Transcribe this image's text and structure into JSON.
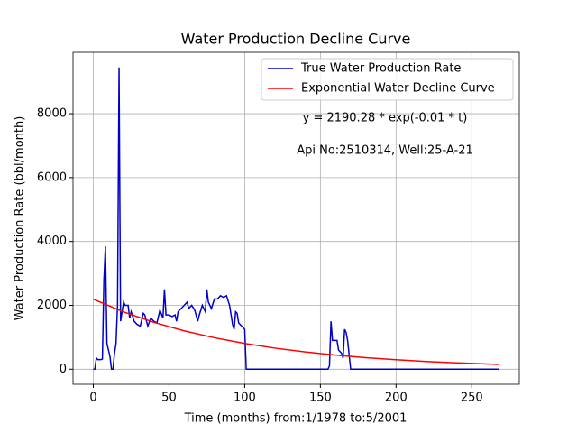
{
  "chart_data": {
    "type": "line",
    "title": "Water Production Decline Curve",
    "xlabel": "Time (months) from:1/1978 to:5/2001",
    "ylabel": "Water Production Rate (bbl/month)",
    "annotations": [
      "y = 2190.28 * exp(-0.01 * t)",
      "Api No:2510314, Well:25-A-21"
    ],
    "xlim": [
      -13.4,
      281.4
    ],
    "xticks": [
      0,
      50,
      100,
      150,
      200,
      250
    ],
    "ylim": [
      -472,
      9922
    ],
    "yticks": [
      0,
      2000,
      4000,
      6000,
      8000
    ],
    "grid": true,
    "legend": "upper right",
    "series": [
      {
        "name": "True Water Production Rate",
        "color": "#0000cc",
        "x": [
          0,
          1,
          2,
          3,
          5,
          6,
          7,
          8,
          9,
          11,
          12,
          13,
          14,
          15,
          16,
          17,
          18,
          19,
          20,
          21,
          23,
          24,
          25,
          27,
          29,
          31,
          33,
          34,
          36,
          38,
          40,
          42,
          44,
          46,
          47,
          48,
          50,
          52,
          54,
          55,
          56,
          58,
          60,
          62,
          63,
          65,
          67,
          69,
          70,
          72,
          74,
          75,
          76,
          78,
          80,
          82,
          84,
          86,
          88,
          90,
          92,
          93,
          94,
          95,
          96,
          98,
          100,
          101,
          110,
          150,
          155,
          156,
          157,
          158,
          160,
          161,
          162,
          164,
          165,
          166,
          167,
          168,
          170,
          268
        ],
        "values": [
          0,
          0,
          350,
          300,
          300,
          320,
          2800,
          3850,
          800,
          400,
          0,
          0,
          500,
          800,
          2000,
          9450,
          1500,
          1800,
          2100,
          2000,
          2000,
          1600,
          1800,
          1500,
          1400,
          1350,
          1750,
          1700,
          1350,
          1600,
          1500,
          1450,
          1850,
          1600,
          2500,
          1700,
          1700,
          1650,
          1700,
          1500,
          1800,
          1900,
          2000,
          2100,
          1900,
          2000,
          1850,
          1500,
          1700,
          2000,
          1800,
          2500,
          2100,
          1900,
          2200,
          2200,
          2300,
          2250,
          2300,
          2000,
          1400,
          1250,
          1800,
          1750,
          1450,
          1350,
          1250,
          0,
          0,
          0,
          0,
          100,
          1500,
          900,
          900,
          900,
          600,
          500,
          350,
          1250,
          1150,
          900,
          0,
          0
        ]
      },
      {
        "name": "Exponential Water Decline Curve",
        "color": "#ff0000",
        "x": [
          0,
          20,
          40,
          60,
          80,
          100,
          120,
          140,
          160,
          180,
          200,
          220,
          240,
          260,
          268
        ],
        "values": [
          2190.28,
          1793.3,
          1468.2,
          1202.1,
          984.2,
          805.8,
          659.7,
          540.1,
          442.2,
          362.1,
          296.4,
          242.7,
          198.7,
          162.7,
          150.2
        ]
      }
    ]
  }
}
